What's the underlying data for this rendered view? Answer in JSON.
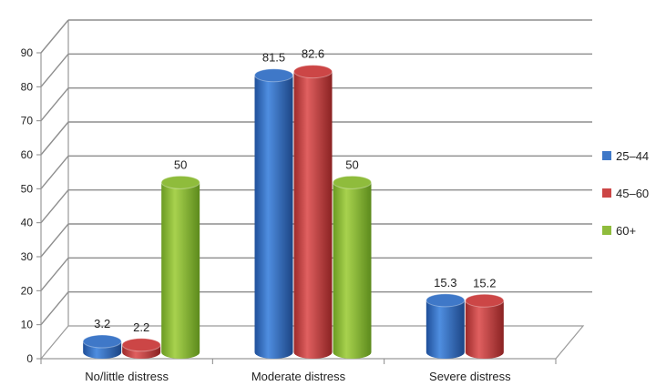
{
  "chart_data": {
    "type": "bar",
    "style": "3d-cylinder",
    "categories": [
      "No/little distress",
      "Moderate distress",
      "Severe distress"
    ],
    "series": [
      {
        "name": "25–44",
        "values": [
          3.2,
          81.5,
          15.3
        ],
        "color": "#3f78c8"
      },
      {
        "name": "45–60",
        "values": [
          2.2,
          82.6,
          15.2
        ],
        "color": "#cc4646"
      },
      {
        "name": "60+",
        "values": [
          50,
          50,
          null
        ],
        "color": "#8fbc3c"
      }
    ],
    "data_labels": [
      [
        "3.2",
        "2.2",
        "50"
      ],
      [
        "81.5",
        "82.6",
        "50"
      ],
      [
        "15.3",
        "15.2",
        ""
      ]
    ],
    "y_ticks": [
      0,
      10,
      20,
      30,
      40,
      50,
      60,
      70,
      80,
      90
    ],
    "ylim": [
      0,
      90
    ],
    "grid": true,
    "legend_position": "right"
  }
}
